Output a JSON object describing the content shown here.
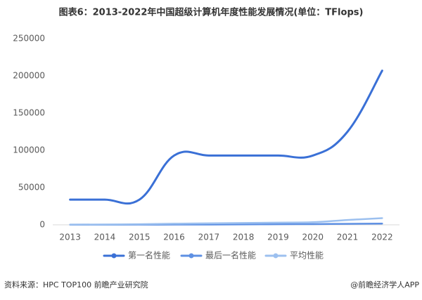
{
  "chart_data": {
    "type": "line",
    "title": "图表6：2013-2022年中国超级计算机年度性能发展情况(单位：TFlops)",
    "categories": [
      "2013",
      "2014",
      "2015",
      "2016",
      "2017",
      "2018",
      "2019",
      "2020",
      "2021",
      "2022"
    ],
    "series": [
      {
        "name": "第一名性能",
        "color": "#3a70d6",
        "values": [
          33863,
          33863,
          33863,
          93015,
          93015,
          93015,
          93015,
          93015,
          125000,
          207000
        ]
      },
      {
        "name": "最后一名性能",
        "color": "#5e90e3",
        "values": [
          100,
          150,
          200,
          300,
          400,
          550,
          800,
          1000,
          1300,
          1700
        ]
      },
      {
        "name": "平均性能",
        "color": "#9cc0ef",
        "values": [
          300,
          500,
          800,
          1500,
          2000,
          2500,
          3000,
          3500,
          6500,
          9000
        ]
      }
    ],
    "ylim": [
      0,
      250000
    ],
    "yticks": [
      0,
      50000,
      100000,
      150000,
      200000,
      250000
    ],
    "grid": false,
    "legend": "bottom",
    "source": "资料来源：HPC TOP100 前瞻产业研究院",
    "credit": "@前瞻经济学人APP"
  }
}
